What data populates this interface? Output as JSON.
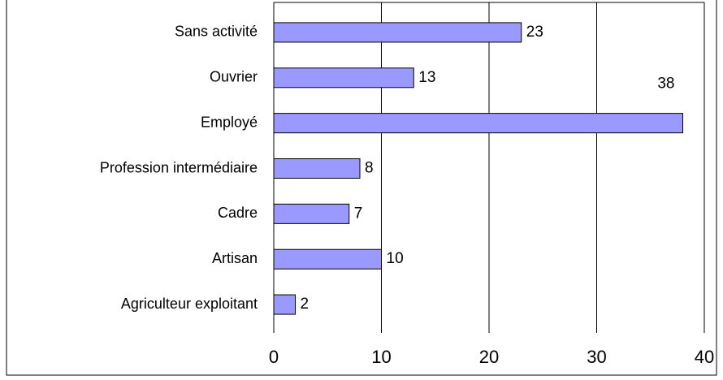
{
  "chart_data": {
    "type": "bar",
    "orientation": "horizontal",
    "categories": [
      "Sans activité",
      "Ouvrier",
      "Employé",
      "Profession intermédiaire",
      "Cadre",
      "Artisan",
      "Agriculteur exploitant"
    ],
    "values": [
      23,
      13,
      38,
      8,
      7,
      10,
      2
    ],
    "color": "#9999ff",
    "xlim": [
      0,
      40
    ],
    "xticks": [
      0,
      10,
      20,
      30,
      40
    ],
    "grid": true
  }
}
